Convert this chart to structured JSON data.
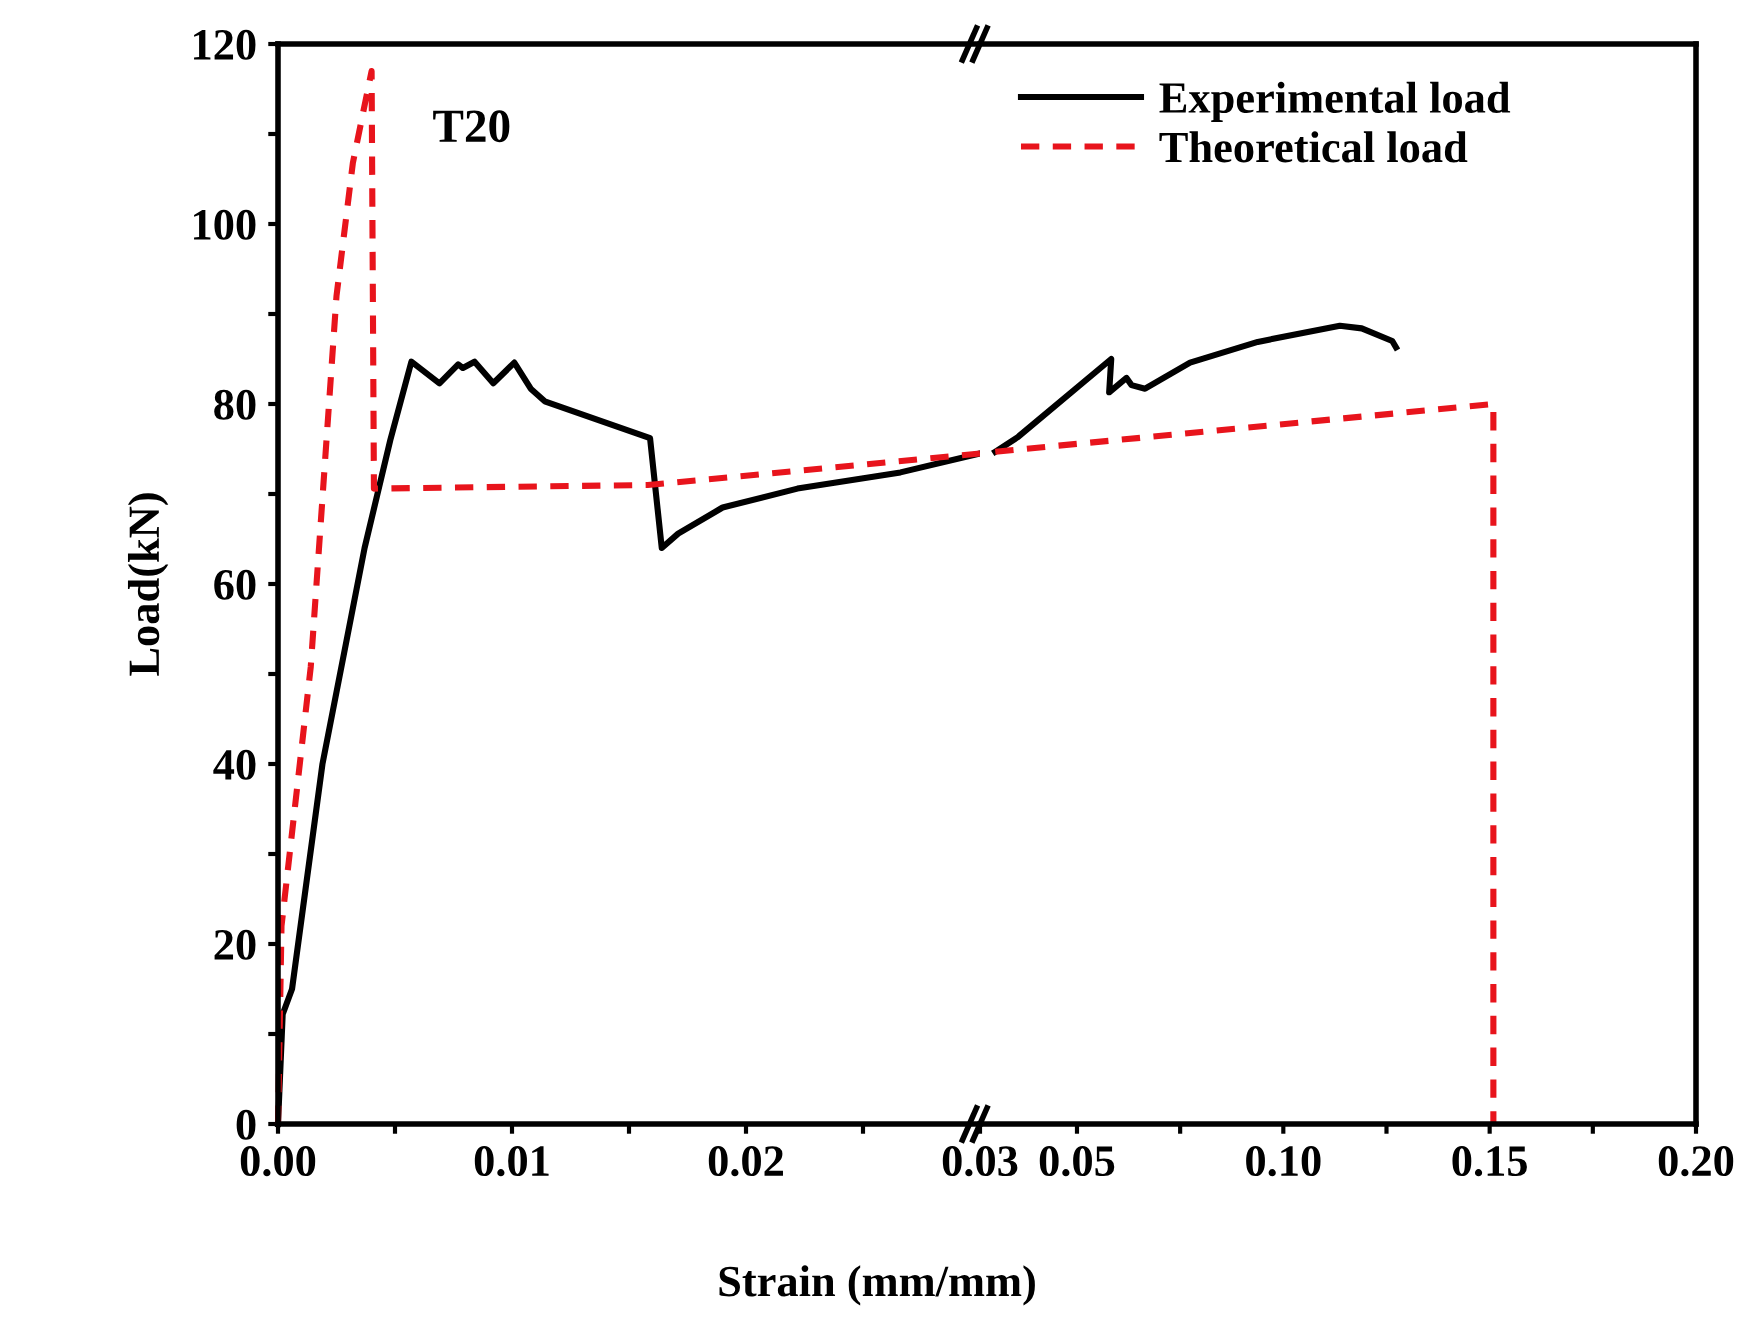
{
  "chart_data": [
    {
      "type": "line",
      "ylabel": "Load(kN)",
      "xlabel": "Strain (mm/mm)",
      "annotations": [
        "T20"
      ],
      "xlim": [
        0,
        0.03
      ],
      "ylim": [
        0,
        120
      ],
      "xticks": [
        {
          "value": 0,
          "label": "0.00"
        },
        {
          "value": 0.005,
          "label": null
        },
        {
          "value": 0.01,
          "label": "0.01"
        },
        {
          "value": 0.015,
          "label": null
        },
        {
          "value": 0.02,
          "label": "0.02"
        },
        {
          "value": 0.025,
          "label": null
        },
        {
          "value": 0.03,
          "label": "0.03"
        }
      ],
      "yticks": [
        0,
        {
          "value": 10,
          "label": null
        },
        20,
        {
          "value": 30,
          "label": null
        },
        40,
        {
          "value": 50,
          "label": null
        },
        60,
        {
          "value": 70,
          "label": null
        },
        80,
        {
          "value": 90,
          "label": null
        },
        100,
        {
          "value": 110,
          "label": null
        },
        120
      ],
      "grid": false,
      "legend": false,
      "series": [
        {
          "color": "#000000",
          "line_style": "solid",
          "x": [
            0,
            0.0002,
            0.0006,
            0.0019,
            0.0037,
            0.0048,
            0.0057,
            0.0069,
            0.0077,
            0.0079,
            0.0084,
            0.0092,
            0.0101,
            0.0108,
            0.0114,
            0.0159,
            0.0164,
            0.0171,
            0.019,
            0.0222,
            0.0266,
            0.03
          ],
          "values": [
            0,
            12.2,
            15,
            40,
            64,
            76,
            84.7,
            82.3,
            84.4,
            84,
            84.7,
            82.3,
            84.6,
            81.7,
            80.3,
            76.2,
            64,
            65.6,
            68.5,
            70.6,
            72.4,
            74.5
          ]
        },
        {
          "color": "#e8141c",
          "line_style": "dashed",
          "x": [
            0,
            0.00015,
            0.0014,
            0.0025,
            0.0032,
            0.004,
            0.0041,
            0.0158,
            0.03
          ],
          "values": [
            0,
            22,
            50.8,
            92,
            106.8,
            117,
            70.6,
            71,
            74.5
          ]
        }
      ]
    },
    {
      "type": "line",
      "xlim": [
        0.0265,
        0.2
      ],
      "ylim": [
        0,
        120
      ],
      "tick_labels": "x",
      "xticks": [
        {
          "value": 0.05,
          "label": "0.05"
        },
        {
          "value": 0.075,
          "label": null
        },
        {
          "value": 0.1,
          "label": "0.10"
        },
        {
          "value": 0.125,
          "label": null
        },
        {
          "value": 0.15,
          "label": "0.15"
        },
        {
          "value": 0.175,
          "label": null
        },
        {
          "value": 0.2,
          "label": "0.20"
        }
      ],
      "grid": false,
      "legend": "top left",
      "series": [
        {
          "name": "Experimental load",
          "color": "#000000",
          "line_style": "solid",
          "x": [
            0.0302,
            0.0356,
            0.0583,
            0.0578,
            0.062,
            0.0632,
            0.0665,
            0.0774,
            0.0938,
            0.1137,
            0.119,
            0.1264,
            0.1273
          ],
          "values": [
            74.7,
            76.3,
            85,
            81.3,
            82.9,
            82.1,
            81.7,
            84.6,
            86.9,
            88.7,
            88.4,
            87,
            86.3
          ]
        },
        {
          "name": "Theoretical load",
          "color": "#e8141c",
          "line_style": "dashed",
          "x": [
            0.0302,
            0.1509,
            0.1509
          ],
          "values": [
            74.7,
            80,
            0
          ]
        }
      ]
    }
  ]
}
